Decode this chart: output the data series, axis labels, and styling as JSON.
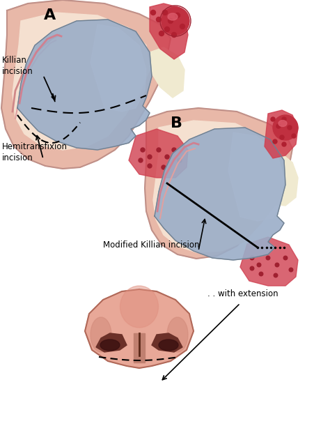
{
  "background_color": "#ffffff",
  "label_A": "A",
  "label_B": "B",
  "label_killian": "Killian\nincision",
  "label_hemitrans": "Hemitransfixion\nincision",
  "label_modified": "Modified Killian incision",
  "label_extension": ". . with extension",
  "septum_color": "#9aadc8",
  "septum_color2": "#a8b8d0",
  "tissue_red": "#c03848",
  "tissue_pink": "#e8b0b8",
  "skin_color": "#e8b8a8",
  "skin_line": "#c09088",
  "skin_inner": "#f0d0c0",
  "nasal_wall_color": "#f5e0d0",
  "cream_color": "#f0ead0",
  "nose_outer": "#e8a898",
  "nose_dark": "#b06858",
  "nose_nostril": "#6b3028",
  "line_color": "#000000"
}
